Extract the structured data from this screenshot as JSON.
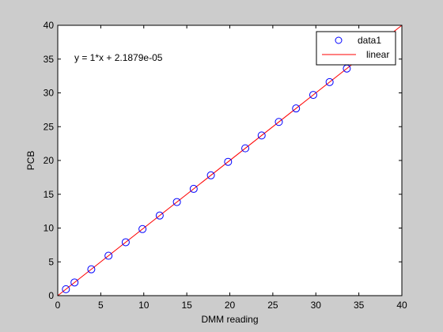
{
  "figure": {
    "background": "#cccccc",
    "axes_background": "#ffffff"
  },
  "chart_data": {
    "type": "scatter",
    "xlabel": "DMM reading",
    "ylabel": "PCB",
    "xlim": [
      0,
      40
    ],
    "ylim": [
      0,
      40
    ],
    "xticks": [
      0,
      5,
      10,
      15,
      20,
      25,
      30,
      35,
      40
    ],
    "yticks": [
      0,
      5,
      10,
      15,
      20,
      25,
      30,
      35,
      40
    ],
    "grid": false,
    "legend_position": "top-right",
    "annotation": "y = 1*x + 2.1879e-05",
    "series": [
      {
        "name": "data1",
        "kind": "markers",
        "marker": "circle",
        "color": "#0000ff",
        "x": [
          0.95,
          1.95,
          3.9,
          5.9,
          7.9,
          9.85,
          11.85,
          13.85,
          15.8,
          17.8,
          19.8,
          21.8,
          23.7,
          25.7,
          27.7,
          29.7,
          31.6,
          33.6
        ],
        "y": [
          0.95,
          1.95,
          3.9,
          5.9,
          7.9,
          9.85,
          11.85,
          13.85,
          15.8,
          17.8,
          19.8,
          21.8,
          23.7,
          25.7,
          27.7,
          29.7,
          31.6,
          33.6
        ]
      },
      {
        "name": "linear",
        "kind": "line",
        "color": "#ff0000",
        "slope": 1,
        "intercept": 2.1879e-05,
        "x": [
          0,
          40
        ],
        "y": [
          2.1879e-05,
          40.000021879
        ]
      }
    ]
  }
}
